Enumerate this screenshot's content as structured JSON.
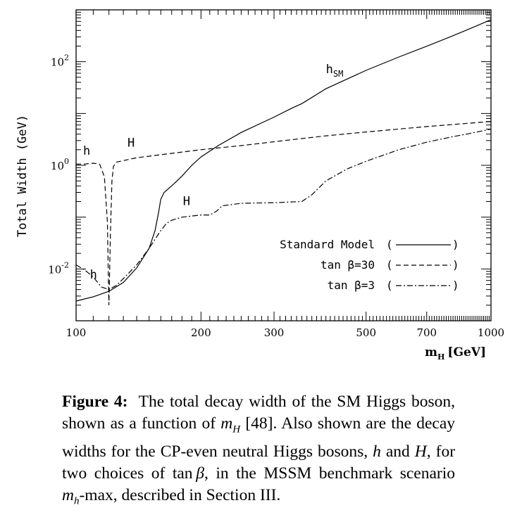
{
  "chart_data": {
    "type": "line",
    "xlabel_base": "m",
    "xlabel_sub": "H",
    "xlabel_unit": "[GeV]",
    "ylabel": "Total Width (GeV)",
    "x_scale": "log",
    "y_scale": "log",
    "xlim": [
      100,
      1000
    ],
    "ylim": [
      0.001,
      1000
    ],
    "x_ticks": [
      100,
      200,
      300,
      500,
      700,
      1000
    ],
    "x_tick_labels": [
      "100",
      "200",
      "300",
      "500",
      "700",
      "1000"
    ],
    "y_tick_labels": [
      {
        "value": 100,
        "base": "10",
        "exp": "2"
      },
      {
        "value": 1,
        "base": "10",
        "exp": "0"
      },
      {
        "value": 0.01,
        "base": "10",
        "exp": "-2"
      }
    ],
    "grid": false,
    "legend": {
      "placement": "lower-right",
      "entries": [
        {
          "label": "Standard Model",
          "style": "solid"
        },
        {
          "label": "tan β=30",
          "style": "dashed"
        },
        {
          "label": "tan β=3",
          "style": "dashdot"
        }
      ]
    },
    "annotations": [
      {
        "text": "h",
        "sub": "SM",
        "x": 400,
        "y": 60
      },
      {
        "text": "h",
        "x": 104,
        "y": 1.6
      },
      {
        "text": "H",
        "x": 133,
        "y": 2.3
      },
      {
        "text": "H",
        "x": 181,
        "y": 0.17
      },
      {
        "text": "h",
        "x": 108,
        "y": 0.0065
      }
    ],
    "series": [
      {
        "style": "solid",
        "points": [
          [
            100,
            0.0024
          ],
          [
            110,
            0.0029
          ],
          [
            120,
            0.0037
          ],
          [
            130,
            0.0055
          ],
          [
            140,
            0.0105
          ],
          [
            150,
            0.025
          ],
          [
            155,
            0.055
          ],
          [
            158,
            0.12
          ],
          [
            160,
            0.22
          ],
          [
            163,
            0.3
          ],
          [
            170,
            0.4
          ],
          [
            180,
            0.62
          ],
          [
            190,
            1.0
          ],
          [
            200,
            1.45
          ],
          [
            220,
            2.4
          ],
          [
            250,
            4.3
          ],
          [
            300,
            8.5
          ],
          [
            330,
            12.5
          ],
          [
            350,
            15.5
          ],
          [
            400,
            30
          ],
          [
            500,
            68
          ],
          [
            600,
            123
          ],
          [
            700,
            199
          ],
          [
            800,
            304
          ],
          [
            900,
            449
          ],
          [
            1000,
            647
          ]
        ]
      },
      {
        "style": "dashed",
        "points": [
          [
            100,
            1.05
          ],
          [
            104,
            1.05
          ],
          [
            110,
            1.1
          ],
          [
            114,
            1.05
          ],
          [
            117,
            0.6
          ],
          [
            119,
            0.08
          ],
          [
            119.5,
            0.01
          ],
          [
            120,
            0.002
          ],
          [
            121,
            0.05
          ],
          [
            122,
            0.5
          ],
          [
            123,
            0.95
          ],
          [
            125,
            1.15
          ],
          [
            140,
            1.4
          ],
          [
            160,
            1.6
          ],
          [
            200,
            2.0
          ],
          [
            250,
            2.4
          ],
          [
            300,
            2.85
          ],
          [
            400,
            3.7
          ],
          [
            500,
            4.4
          ],
          [
            700,
            5.6
          ],
          [
            1000,
            7.0
          ]
        ]
      },
      {
        "style": "dashdot",
        "points": [
          [
            100,
            0.012
          ],
          [
            105,
            0.0095
          ],
          [
            110,
            0.007
          ],
          [
            115,
            0.0045
          ],
          [
            120,
            0.004
          ],
          [
            125,
            0.0048
          ],
          [
            130,
            0.0065
          ],
          [
            140,
            0.012
          ],
          [
            150,
            0.025
          ],
          [
            160,
            0.055
          ],
          [
            165,
            0.075
          ],
          [
            170,
            0.087
          ],
          [
            180,
            0.1
          ],
          [
            200,
            0.11
          ],
          [
            210,
            0.11
          ],
          [
            218,
            0.13
          ],
          [
            225,
            0.165
          ],
          [
            250,
            0.185
          ],
          [
            300,
            0.19
          ],
          [
            350,
            0.2
          ],
          [
            370,
            0.27
          ],
          [
            400,
            0.5
          ],
          [
            450,
            0.85
          ],
          [
            500,
            1.2
          ],
          [
            600,
            2.0
          ],
          [
            700,
            2.8
          ],
          [
            800,
            3.5
          ],
          [
            900,
            4.2
          ],
          [
            1000,
            5.0
          ]
        ]
      }
    ]
  },
  "caption": {
    "label": "Figure 4:",
    "text1": "The total decay width of the SM Higgs boson, shown as a function of",
    "m": "m",
    "sub_H": "H",
    "text2": "[48]. Also shown are the decay widths for the CP-even neutral Higgs bosons,",
    "h": "h",
    "and": "and",
    "H": "H",
    "text3": ", for two choices of tan",
    "beta": "β",
    "text4": ", in the MSSM benchmark scenario",
    "m2": "m",
    "sub_h": "h",
    "text5": "-max, described in Section III."
  }
}
